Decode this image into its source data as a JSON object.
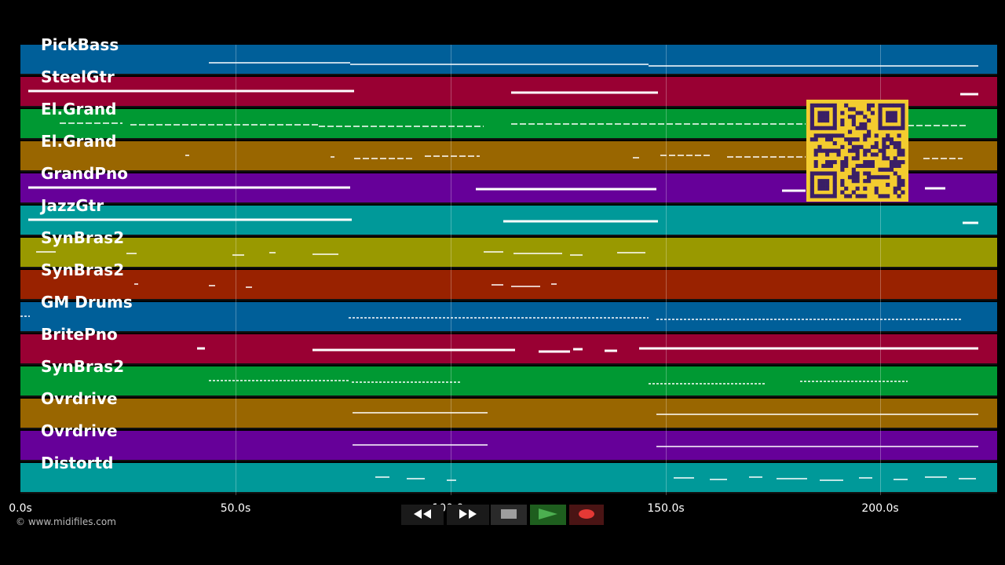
{
  "tracks": [
    {
      "name": "PickBass",
      "color": "#005f99"
    },
    {
      "name": "SteelGtr",
      "color": "#990033"
    },
    {
      "name": "El.Grand",
      "color": "#009933"
    },
    {
      "name": "El.Grand",
      "color": "#996600"
    },
    {
      "name": "GrandPno",
      "color": "#660099"
    },
    {
      "name": "JazzGtr",
      "color": "#009999"
    },
    {
      "name": "SynBras2",
      "color": "#999900"
    },
    {
      "name": "SynBras2",
      "color": "#992200"
    },
    {
      "name": "GM Drums",
      "color": "#005f99"
    },
    {
      "name": "BritePno",
      "color": "#990033"
    },
    {
      "name": "SynBras2",
      "color": "#009933"
    },
    {
      "name": "Ovrdrive",
      "color": "#996600"
    },
    {
      "name": "Ovrdrive",
      "color": "#660099"
    },
    {
      "name": "Distortd",
      "color": "#009999"
    }
  ],
  "timeline": {
    "ticks": [
      "0.0s",
      "50.0s",
      "100.0s",
      "150.0s",
      "200.0s"
    ]
  },
  "copyright": "© www.midifiles.com",
  "transport": {
    "rewind_icon": "rewind-icon",
    "forward_icon": "fast-forward-icon",
    "stop_icon": "stop-icon",
    "play_icon": "play-icon",
    "record_icon": "record-icon",
    "play_color": "#4caf50",
    "record_color": "#e53935"
  },
  "qr_color": "#f3cc2f"
}
